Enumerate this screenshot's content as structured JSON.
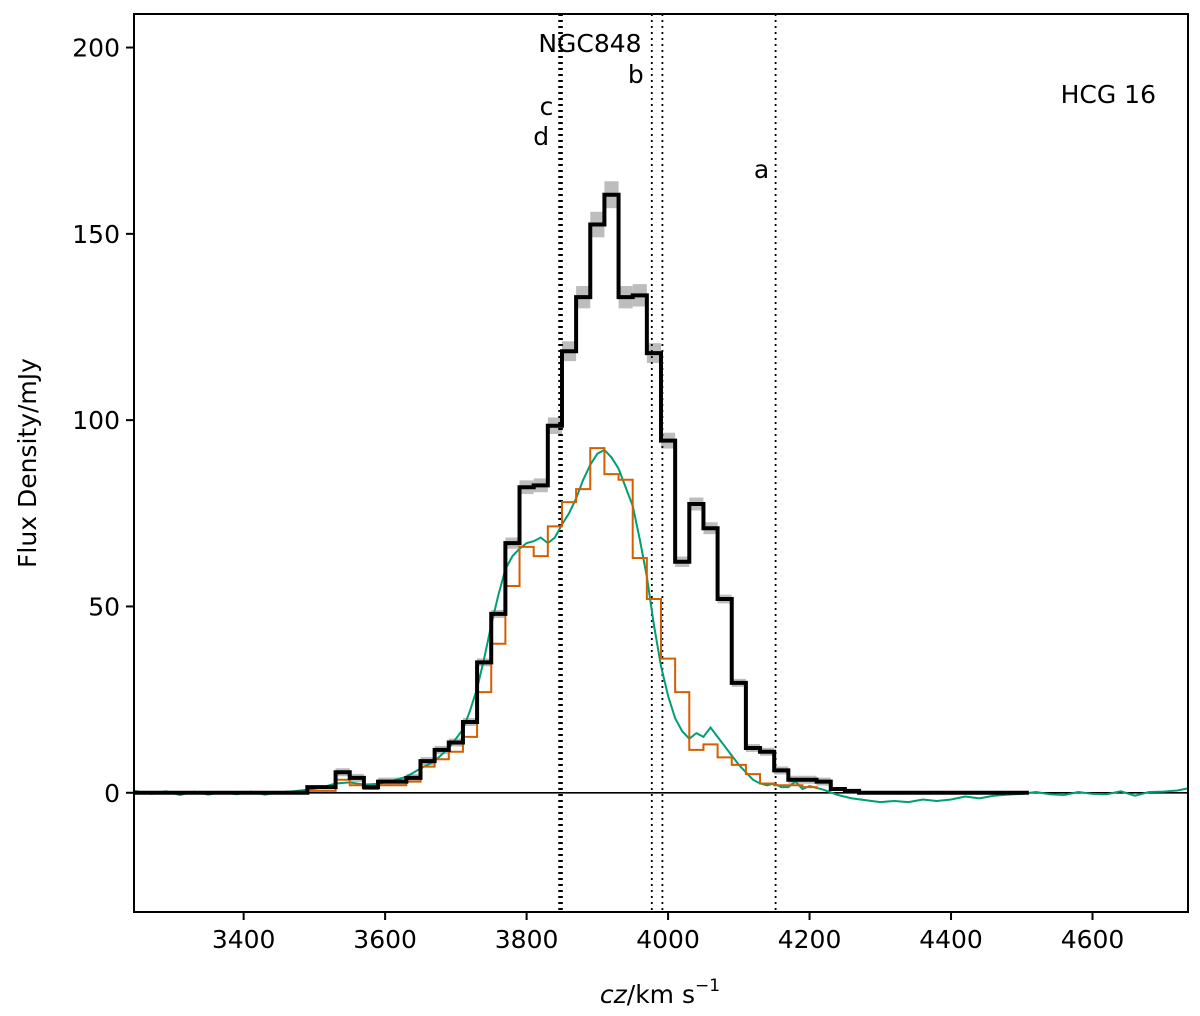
{
  "chart_data": {
    "type": "line",
    "panel_label": "HCG 16",
    "xlabel_prefix": "cz",
    "xlabel_unit": "/km s",
    "xlabel_exp": "−1",
    "ylabel": "Flux Density/mJy",
    "xlim": [
      3245,
      4735
    ],
    "ylim": [
      -32,
      209
    ],
    "xticks": [
      3400,
      3600,
      3800,
      4000,
      4200,
      4400,
      4600
    ],
    "yticks": [
      0,
      50,
      100,
      150,
      200
    ],
    "grid": false,
    "legend": "none",
    "colors": {
      "total": "#000000",
      "uncertainty": "#bdbdbd",
      "orange_step": "#d55e00",
      "green_line": "#009e73"
    },
    "vertical_markers": [
      {
        "label": "NGC848",
        "x": 3850
      },
      {
        "label": "c",
        "x": 3848
      },
      {
        "label": "d",
        "x": 3846
      },
      {
        "label": "b",
        "x": 3977
      },
      {
        "label": "",
        "x": 3992
      },
      {
        "label": "a",
        "x": 4152
      }
    ],
    "series": [
      {
        "role": "total",
        "step": true,
        "x": [
          3245,
          3270,
          3290,
          3310,
          3330,
          3350,
          3370,
          3390,
          3410,
          3430,
          3450,
          3470,
          3490,
          3510,
          3530,
          3550,
          3570,
          3590,
          3610,
          3630,
          3650,
          3670,
          3690,
          3710,
          3730,
          3750,
          3770,
          3790,
          3810,
          3830,
          3850,
          3870,
          3890,
          3910,
          3930,
          3950,
          3970,
          3990,
          4010,
          4030,
          4050,
          4070,
          4090,
          4110,
          4130,
          4150,
          4170,
          4190,
          4210,
          4230,
          4250,
          4270,
          4290,
          4310,
          4330,
          4350,
          4370,
          4390,
          4410,
          4430,
          4450,
          4470,
          4490,
          4510
        ],
        "y": [
          0,
          0,
          0,
          0,
          0,
          0,
          0,
          0,
          0,
          0,
          0,
          0,
          1.5,
          1.5,
          5.5,
          4,
          1.5,
          3,
          3,
          4,
          8.5,
          11.5,
          13.5,
          19,
          35,
          48,
          67,
          82,
          82.5,
          98.5,
          118.5,
          133,
          152.5,
          160.5,
          133,
          133.5,
          118,
          94.5,
          62,
          77.5,
          71,
          52,
          29.5,
          12,
          11,
          6,
          3.5,
          3.5,
          3,
          1,
          0.5,
          0,
          0,
          0,
          0,
          0,
          0,
          0,
          0,
          0,
          0,
          0,
          0,
          0
        ]
      },
      {
        "role": "orange_step",
        "step": true,
        "x": [
          3490,
          3510,
          3530,
          3550,
          3570,
          3590,
          3610,
          3630,
          3650,
          3670,
          3690,
          3710,
          3730,
          3750,
          3770,
          3790,
          3810,
          3830,
          3850,
          3870,
          3890,
          3910,
          3930,
          3950,
          3970,
          3990,
          4010,
          4030,
          4050,
          4070,
          4090,
          4110,
          4130,
          4150,
          4170,
          4190,
          4210
        ],
        "y": [
          0.5,
          0.5,
          3.5,
          2,
          1,
          2,
          2,
          3,
          7,
          9,
          11,
          15,
          27,
          40,
          55.5,
          66,
          63.5,
          71.5,
          78,
          81.5,
          92.5,
          85.5,
          84,
          63,
          52,
          36,
          27,
          11.5,
          13,
          9.5,
          7.5,
          5,
          2.5,
          2,
          2,
          1.5,
          1
        ]
      },
      {
        "role": "green_line",
        "step": false,
        "x": [
          3245,
          3270,
          3290,
          3310,
          3330,
          3350,
          3370,
          3390,
          3410,
          3430,
          3450,
          3470,
          3490,
          3510,
          3530,
          3550,
          3570,
          3590,
          3610,
          3630,
          3650,
          3670,
          3690,
          3710,
          3720,
          3730,
          3740,
          3750,
          3760,
          3770,
          3780,
          3790,
          3800,
          3810,
          3820,
          3830,
          3840,
          3850,
          3860,
          3870,
          3880,
          3890,
          3900,
          3910,
          3920,
          3930,
          3940,
          3950,
          3960,
          3970,
          3980,
          3990,
          4000,
          4010,
          4020,
          4030,
          4040,
          4050,
          4060,
          4070,
          4080,
          4090,
          4100,
          4110,
          4120,
          4130,
          4140,
          4150,
          4160,
          4170,
          4180,
          4190,
          4200,
          4220,
          4240,
          4260,
          4280,
          4300,
          4320,
          4340,
          4360,
          4380,
          4400,
          4420,
          4440,
          4460,
          4480,
          4500,
          4520,
          4540,
          4560,
          4580,
          4600,
          4620,
          4640,
          4660,
          4680,
          4700,
          4720,
          4735
        ],
        "y": [
          0.5,
          -0.3,
          0.4,
          -0.6,
          0.3,
          -0.5,
          0.2,
          -0.4,
          0.3,
          -0.5,
          0.1,
          0.4,
          0.8,
          1.4,
          2.5,
          2.8,
          2.2,
          2.4,
          3.2,
          4.3,
          6.5,
          8.5,
          12,
          17,
          22,
          28,
          36,
          45,
          53,
          60,
          63.5,
          65.5,
          67,
          67.5,
          68.5,
          67,
          68.5,
          72,
          75,
          79,
          84,
          88,
          91,
          92,
          90,
          87,
          82,
          77,
          68,
          58,
          45,
          34,
          26,
          20,
          16.5,
          14.5,
          16,
          15,
          17.5,
          15,
          12.5,
          10,
          7.5,
          5.5,
          3.5,
          2.5,
          2,
          2.5,
          1.5,
          1.5,
          3,
          1,
          1.8,
          0.8,
          -0.6,
          -1.5,
          -2,
          -2.5,
          -2.2,
          -2.5,
          -1.8,
          -2.2,
          -1.8,
          -1,
          -1.5,
          -0.8,
          -0.5,
          -0.3,
          0.2,
          -0.4,
          -0.6,
          0.2,
          -0.3,
          -0.4,
          0.4,
          -0.8,
          0.2,
          0.3,
          0.6,
          1.2
        ]
      }
    ]
  }
}
